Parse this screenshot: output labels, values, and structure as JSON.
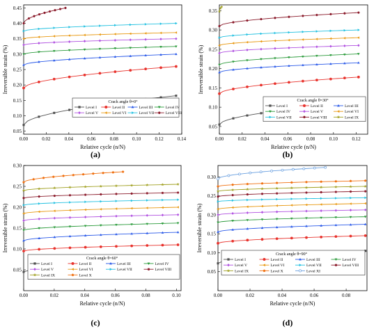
{
  "colors": {
    "I": "#505050",
    "II": "#e8322c",
    "III": "#2858e8",
    "IV": "#2a9a3a",
    "V": "#b050e0",
    "VI": "#e89810",
    "VII": "#20c0e0",
    "VIII": "#8a1a2a",
    "IX": "#a0a020",
    "X": "#f07010",
    "XI": "#6aa0e0"
  },
  "chart_data": [
    {
      "type": "line",
      "caption": "(a)",
      "legend_title": "Crack angle θ=0°",
      "xlabel": "Relative cycle (n/N)",
      "ylabel": "Irreversible strain (%)",
      "xlim": [
        0.0,
        0.14
      ],
      "ylim": [
        0.04,
        0.46
      ],
      "xticks": [
        "0.00",
        "0.02",
        "0.04",
        "0.06",
        "0.08",
        "0.10",
        "0.12",
        "0.14"
      ],
      "yticks": [
        "0.05",
        "0.10",
        "0.15",
        "0.20",
        "0.25",
        "0.30",
        "0.35",
        "0.40",
        "0.45"
      ],
      "series": [
        {
          "name": "Level I",
          "key": "I",
          "marker": "square",
          "xmax": 0.135,
          "start": 0.07,
          "end": 0.165
        },
        {
          "name": "Level II",
          "key": "II",
          "marker": "circle",
          "xmax": 0.135,
          "start": 0.19,
          "end": 0.26
        },
        {
          "name": "Level III",
          "key": "III",
          "marker": "triangle-up",
          "xmax": 0.135,
          "start": 0.265,
          "end": 0.3
        },
        {
          "name": "Level IV",
          "key": "IV",
          "marker": "triangle-down",
          "xmax": 0.135,
          "start": 0.3,
          "end": 0.325
        },
        {
          "name": "Level V",
          "key": "V",
          "marker": "diamond",
          "xmax": 0.135,
          "start": 0.33,
          "end": 0.35
        },
        {
          "name": "Level VI",
          "key": "VI",
          "marker": "triangle-left",
          "xmax": 0.135,
          "start": 0.35,
          "end": 0.37
        },
        {
          "name": "Level VII",
          "key": "VII",
          "marker": "triangle-right",
          "xmax": 0.135,
          "start": 0.375,
          "end": 0.4
        },
        {
          "name": "Level VIII",
          "key": "VIII",
          "marker": "hexagon",
          "xmax": 0.037,
          "start": 0.4,
          "end": 0.45
        }
      ]
    },
    {
      "type": "line",
      "caption": "(b)",
      "legend_title": "Crack angle θ=30°",
      "xlabel": "Relative cycle (n/N)",
      "ylabel": "Irreversible strain (%)",
      "xlim": [
        0.0,
        0.13
      ],
      "ylim": [
        0.03,
        0.365
      ],
      "xticks": [
        "0.00",
        "0.02",
        "0.04",
        "0.06",
        "0.08",
        "0.10",
        "0.12"
      ],
      "yticks": [
        "0.05",
        "0.10",
        "0.15",
        "0.20",
        "0.25",
        "0.30",
        "0.35"
      ],
      "series": [
        {
          "name": "Level I",
          "key": "I",
          "marker": "square",
          "xmax": 0.122,
          "start": 0.055,
          "end": 0.112
        },
        {
          "name": "Level II",
          "key": "II",
          "marker": "circle",
          "xmax": 0.122,
          "start": 0.135,
          "end": 0.178
        },
        {
          "name": "Level III",
          "key": "III",
          "marker": "triangle-up",
          "xmax": 0.122,
          "start": 0.19,
          "end": 0.215
        },
        {
          "name": "Level IV",
          "key": "IV",
          "marker": "triangle-down",
          "xmax": 0.122,
          "start": 0.21,
          "end": 0.238
        },
        {
          "name": "Level V",
          "key": "V",
          "marker": "diamond",
          "xmax": 0.122,
          "start": 0.24,
          "end": 0.26
        },
        {
          "name": "Level VI",
          "key": "VI",
          "marker": "triangle-left",
          "xmax": 0.122,
          "start": 0.26,
          "end": 0.28
        },
        {
          "name": "Level VII",
          "key": "VII",
          "marker": "triangle-right",
          "xmax": 0.122,
          "start": 0.28,
          "end": 0.3
        },
        {
          "name": "Level VIII",
          "key": "VIII",
          "marker": "hexagon",
          "xmax": 0.122,
          "start": 0.31,
          "end": 0.345
        },
        {
          "name": "Level IX",
          "key": "IX",
          "marker": "star",
          "xmax": 0.002,
          "start": 0.348,
          "end": 0.36
        }
      ]
    },
    {
      "type": "line",
      "caption": "(c)",
      "legend_title": "Crack angle θ=60°",
      "xlabel": "Relative cycle (n/N)",
      "ylabel": "Irreversible strain (%)",
      "xlim": [
        0.0,
        0.103
      ],
      "ylim": [
        0.0,
        0.3
      ],
      "xticks": [
        "0.00",
        "0.02",
        "0.04",
        "0.06",
        "0.08",
        "0.10"
      ],
      "yticks": [
        "0.05",
        "0.10",
        "0.15",
        "0.20",
        "0.25",
        "0.30"
      ],
      "series": [
        {
          "name": "Level I",
          "key": "I",
          "marker": "square",
          "xmax": 0.101,
          "start": 0.045,
          "end": 0.067
        },
        {
          "name": "Level II",
          "key": "II",
          "marker": "circle",
          "xmax": 0.101,
          "start": 0.095,
          "end": 0.11
        },
        {
          "name": "Level III",
          "key": "III",
          "marker": "triangle-up",
          "xmax": 0.101,
          "start": 0.12,
          "end": 0.14
        },
        {
          "name": "Level IV",
          "key": "IV",
          "marker": "triangle-down",
          "xmax": 0.101,
          "start": 0.145,
          "end": 0.162
        },
        {
          "name": "Level V",
          "key": "V",
          "marker": "diamond",
          "xmax": 0.101,
          "start": 0.168,
          "end": 0.182
        },
        {
          "name": "Level VI",
          "key": "VI",
          "marker": "triangle-left",
          "xmax": 0.101,
          "start": 0.185,
          "end": 0.2
        },
        {
          "name": "Level VII",
          "key": "VII",
          "marker": "triangle-right",
          "xmax": 0.101,
          "start": 0.205,
          "end": 0.218
        },
        {
          "name": "Level VIII",
          "key": "VIII",
          "marker": "hexagon",
          "xmax": 0.101,
          "start": 0.222,
          "end": 0.235
        },
        {
          "name": "Level IX",
          "key": "IX",
          "marker": "star",
          "xmax": 0.101,
          "start": 0.24,
          "end": 0.255
        },
        {
          "name": "Level X",
          "key": "X",
          "marker": "pentagon",
          "xmax": 0.065,
          "start": 0.26,
          "end": 0.285
        }
      ]
    },
    {
      "type": "line",
      "caption": "(d)",
      "legend_title": "Crack angle θ=90°",
      "xlabel": "Relative cycle (n/N)",
      "ylabel": "Irreversible strain (%)",
      "xlim": [
        0.0,
        0.093
      ],
      "ylim": [
        0.0,
        0.33
      ],
      "xticks": [
        "0.00",
        "0.02",
        "0.04",
        "0.06",
        "0.08"
      ],
      "yticks": [
        "0.05",
        "0.10",
        "0.15",
        "0.20",
        "0.25",
        "0.30"
      ],
      "series": [
        {
          "name": "Level I",
          "key": "I",
          "marker": "square",
          "xmax": 0.092,
          "start": 0.072,
          "end": 0.105
        },
        {
          "name": "Level II",
          "key": "II",
          "marker": "circle",
          "xmax": 0.092,
          "start": 0.125,
          "end": 0.145
        },
        {
          "name": "Level III",
          "key": "III",
          "marker": "triangle-up",
          "xmax": 0.092,
          "start": 0.155,
          "end": 0.175
        },
        {
          "name": "Level IV",
          "key": "IV",
          "marker": "triangle-down",
          "xmax": 0.092,
          "start": 0.18,
          "end": 0.195
        },
        {
          "name": "Level V",
          "key": "V",
          "marker": "diamond",
          "xmax": 0.092,
          "start": 0.2,
          "end": 0.213
        },
        {
          "name": "Level VI",
          "key": "VI",
          "marker": "triangle-left",
          "xmax": 0.092,
          "start": 0.215,
          "end": 0.23
        },
        {
          "name": "Level VII",
          "key": "VII",
          "marker": "triangle-right",
          "xmax": 0.092,
          "start": 0.235,
          "end": 0.245
        },
        {
          "name": "Level VIII",
          "key": "VIII",
          "marker": "hexagon",
          "xmax": 0.092,
          "start": 0.248,
          "end": 0.262
        },
        {
          "name": "Level IX",
          "key": "IX",
          "marker": "star",
          "xmax": 0.092,
          "start": 0.262,
          "end": 0.275
        },
        {
          "name": "Level X",
          "key": "X",
          "marker": "pentagon",
          "xmax": 0.092,
          "start": 0.275,
          "end": 0.29
        },
        {
          "name": "Level XI",
          "key": "XI",
          "marker": "circle-open",
          "xmax": 0.067,
          "start": 0.295,
          "end": 0.325
        }
      ]
    }
  ]
}
